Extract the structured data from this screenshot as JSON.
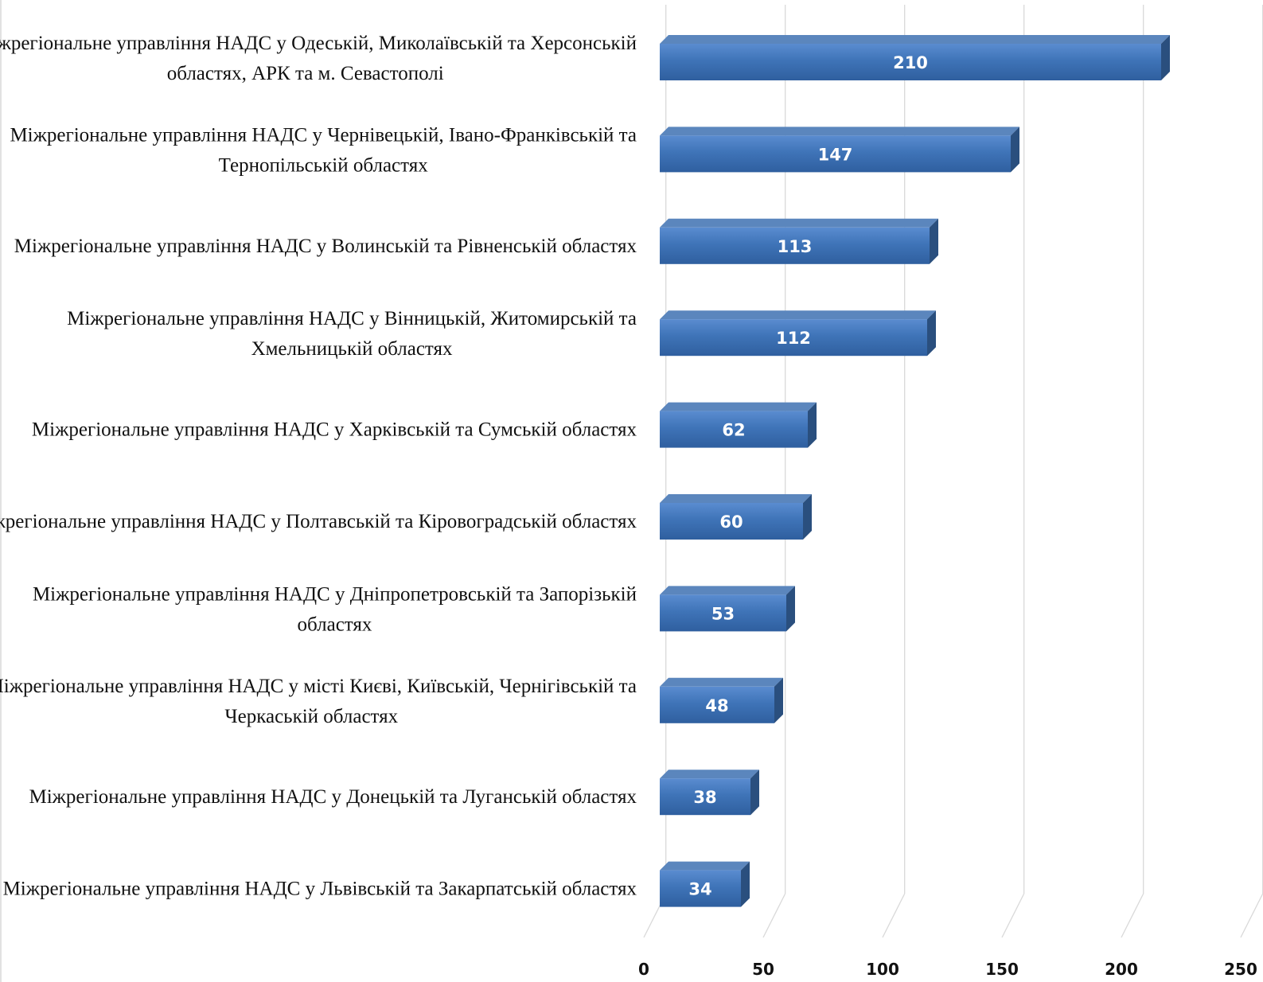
{
  "chart_data": {
    "type": "bar",
    "orientation": "horizontal",
    "style": "3d",
    "categories": [
      [
        "Міжрегіональне управління НАДС у Одеській, Миколаївській та Херсонській",
        "областях, АРК та м. Севастополі"
      ],
      [
        "Міжрегіональне управління НАДС у Чернівецькій, Івано-Франківській та",
        "Тернопільській областях"
      ],
      [
        "Міжрегіональне управління НАДС у Волинській та Рівненській областях"
      ],
      [
        "Міжрегіональне управління НАДС у Вінницькій, Житомирській та",
        "Хмельницькій областях"
      ],
      [
        "Міжрегіональне управління НАДС у Харківській та Сумській областях"
      ],
      [
        "Міжрегіональне управління НАДС у Полтавській та Кіровоградській областях"
      ],
      [
        "Міжрегіональне управління НАДС у Дніпропетровській та Запорізькій",
        "областях"
      ],
      [
        "Міжрегіональне управління НАДС у місті Києві, Київській, Чернігівській та",
        "Черкаській областях"
      ],
      [
        "Міжрегіональне управління НАДС у Донецькій та Луганській областях"
      ],
      [
        "Міжрегіональне управління НАДС у Львівській та Закарпатській областях"
      ]
    ],
    "values": [
      210,
      147,
      113,
      112,
      62,
      60,
      53,
      48,
      38,
      34
    ],
    "data_labels": [
      "210",
      "147",
      "113",
      "112",
      "62",
      "60",
      "53",
      "48",
      "38",
      "34"
    ],
    "xlim": [
      0,
      250
    ],
    "ticks": [
      0,
      50,
      100,
      150,
      200,
      250
    ],
    "tick_labels": [
      "0",
      "50",
      "100",
      "150",
      "200",
      "250"
    ],
    "grid": true,
    "legend": "none",
    "colors": {
      "bar_front": "#3f74b8",
      "bar_top": "#5b86bd",
      "bar_side": "#2a4f7e",
      "grid": "#d9d9d9"
    }
  }
}
